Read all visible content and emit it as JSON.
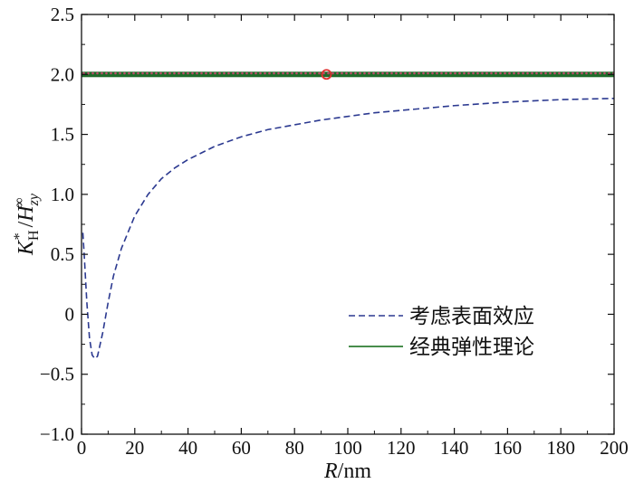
{
  "chart_data": {
    "type": "line",
    "xlabel": "R/nm",
    "ylabel": "K*H / H∞zy",
    "xlim": [
      0,
      200
    ],
    "ylim": [
      -1.0,
      2.5
    ],
    "x_ticks": [
      "0",
      "20",
      "40",
      "60",
      "80",
      "100",
      "120",
      "140",
      "160",
      "180",
      "200"
    ],
    "y_ticks": [
      "−1.0",
      "−0.5",
      "0",
      "0.5",
      "1.0",
      "1.5",
      "2.0",
      "2.5"
    ],
    "grid": false,
    "legend_position": "bottom-right",
    "series": [
      {
        "name": "考虑表面效应",
        "style": "dashed",
        "color": "#2b3990",
        "x": [
          0.5,
          1,
          2,
          3,
          4,
          5,
          6,
          8,
          10,
          12,
          15,
          20,
          25,
          30,
          35,
          40,
          50,
          60,
          70,
          80,
          90,
          100,
          110,
          120,
          130,
          140,
          150,
          160,
          170,
          180,
          190,
          200
        ],
        "y": [
          0.68,
          0.5,
          0.1,
          -0.2,
          -0.34,
          -0.37,
          -0.35,
          -0.15,
          0.1,
          0.32,
          0.55,
          0.82,
          1.0,
          1.13,
          1.22,
          1.29,
          1.4,
          1.48,
          1.54,
          1.58,
          1.62,
          1.65,
          1.68,
          1.7,
          1.72,
          1.74,
          1.755,
          1.77,
          1.78,
          1.79,
          1.795,
          1.8
        ]
      },
      {
        "name": "经典弹性理论",
        "style": "solid",
        "color": "#2e7d32",
        "x": [
          0,
          200
        ],
        "y": [
          2.0,
          2.0
        ]
      }
    ],
    "marker": {
      "x": 92,
      "y": 2.0,
      "color": "#e03030"
    }
  }
}
